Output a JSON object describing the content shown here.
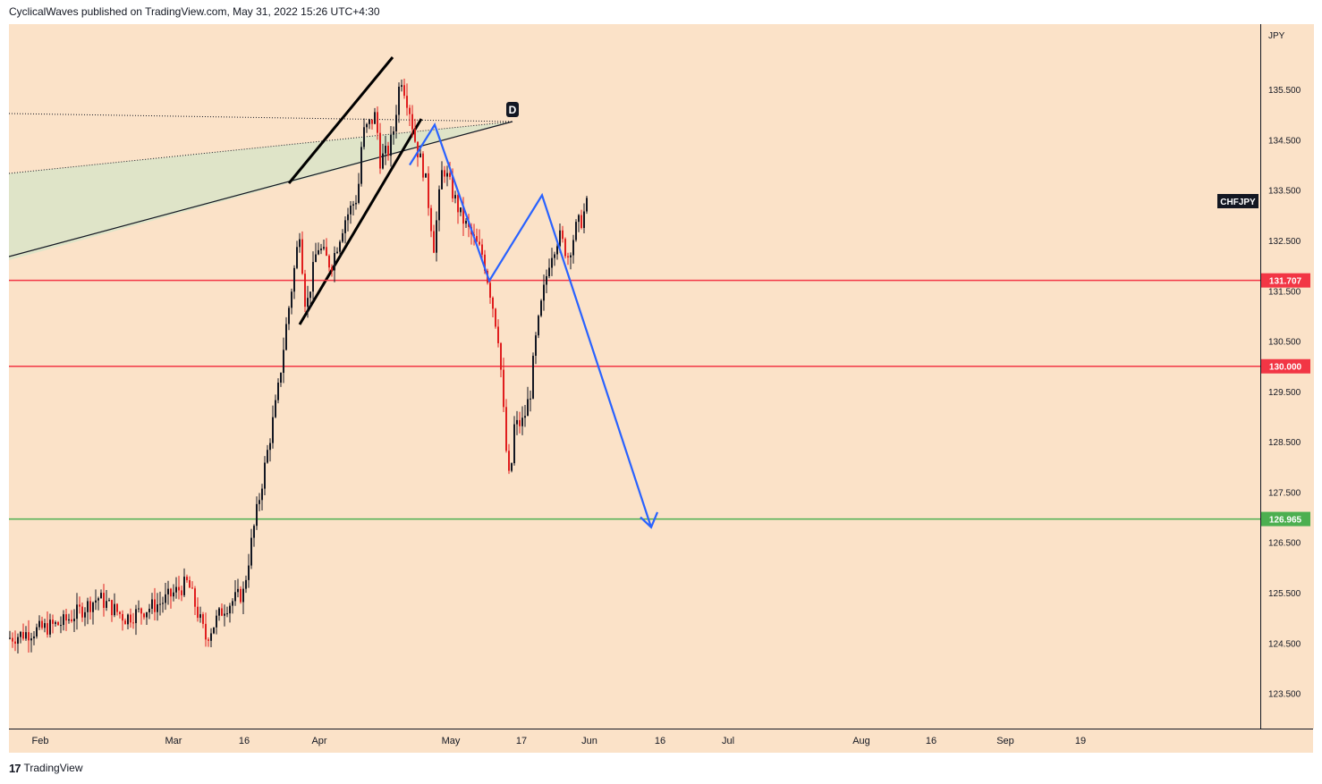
{
  "header": {
    "publisher_line": "CyclicalWaves published on TradingView.com, May 31, 2022 15:26 UTC+4:30"
  },
  "footer": {
    "logo_glyph": "17",
    "brand": "TradingView"
  },
  "colors": {
    "background": "#fbe2c8",
    "up_candle": "#131722",
    "down_candle": "#e01e1e",
    "red_level": "#f23645",
    "green_level": "#4caf50",
    "projection": "#2962ff",
    "wedge_fill": "#d9e4c8",
    "channel_line": "#000000"
  },
  "chart_data": {
    "type": "candlestick",
    "symbol": "CHFJPY",
    "currency": "JPY",
    "y_ticks": [
      "135.500",
      "134.500",
      "133.500",
      "132.500",
      "131.500",
      "130.500",
      "129.500",
      "128.500",
      "127.500",
      "126.500",
      "125.500",
      "124.500",
      "123.500"
    ],
    "ylim": [
      122.8,
      136.8
    ],
    "x_ticks": [
      {
        "label": "Feb",
        "x": 35
      },
      {
        "label": "Mar",
        "x": 184
      },
      {
        "label": "16",
        "x": 263
      },
      {
        "label": "Apr",
        "x": 347
      },
      {
        "label": "May",
        "x": 494
      },
      {
        "label": "17",
        "x": 573
      },
      {
        "label": "Jun",
        "x": 649
      },
      {
        "label": "16",
        "x": 728
      },
      {
        "label": "Jul",
        "x": 804
      },
      {
        "label": "Aug",
        "x": 953
      },
      {
        "label": "16",
        "x": 1031
      },
      {
        "label": "Sep",
        "x": 1114
      },
      {
        "label": "19",
        "x": 1198
      }
    ],
    "levels": [
      {
        "value": 131.707,
        "label": "131.707",
        "color": "red"
      },
      {
        "value": 130.0,
        "label": "130.000",
        "color": "red"
      },
      {
        "value": 126.965,
        "label": "126.965",
        "color": "green"
      }
    ],
    "wedge_label": "D",
    "price_path": [
      [
        0,
        124.6
      ],
      [
        60,
        124.9
      ],
      [
        100,
        125.4
      ],
      [
        130,
        125.0
      ],
      [
        170,
        125.3
      ],
      [
        200,
        125.7
      ],
      [
        220,
        124.6
      ],
      [
        240,
        125.2
      ],
      [
        262,
        125.5
      ],
      [
        272,
        126.6
      ],
      [
        285,
        127.9
      ],
      [
        300,
        129.4
      ],
      [
        310,
        130.8
      ],
      [
        318,
        131.8
      ],
      [
        325,
        132.7
      ],
      [
        332,
        131.1
      ],
      [
        345,
        132.4
      ],
      [
        360,
        132.0
      ],
      [
        375,
        132.9
      ],
      [
        390,
        133.4
      ],
      [
        395,
        134.6
      ],
      [
        410,
        135.0
      ],
      [
        415,
        134.1
      ],
      [
        425,
        134.3
      ],
      [
        430,
        134.7
      ],
      [
        438,
        135.8
      ],
      [
        448,
        135.1
      ],
      [
        455,
        134.4
      ],
      [
        465,
        133.8
      ],
      [
        475,
        132.4
      ],
      [
        485,
        134.0
      ],
      [
        495,
        133.5
      ],
      [
        505,
        133.0
      ],
      [
        520,
        132.5
      ],
      [
        530,
        132.2
      ],
      [
        540,
        131.3
      ],
      [
        548,
        130.5
      ],
      [
        555,
        128.5
      ],
      [
        560,
        127.6
      ],
      [
        565,
        128.8
      ],
      [
        575,
        128.9
      ],
      [
        583,
        129.5
      ],
      [
        588,
        130.4
      ],
      [
        595,
        131.2
      ],
      [
        605,
        132.2
      ],
      [
        615,
        132.6
      ],
      [
        625,
        132.2
      ],
      [
        635,
        132.8
      ],
      [
        640,
        132.9
      ],
      [
        648,
        133.3
      ]
    ],
    "projection_path": [
      [
        133.9
      ],
      [
        134.9
      ],
      [
        131.7
      ],
      [
        133.4
      ],
      [
        126.8
      ]
    ]
  }
}
